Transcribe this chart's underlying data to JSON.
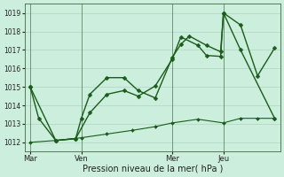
{
  "xlabel": "Pression niveau de la mer( hPa )",
  "bg_color": "#cceedd",
  "grid_color": "#aaccbb",
  "line_color": "#1a5c1a",
  "ylim": [
    1011.5,
    1019.5
  ],
  "yticks": [
    1012,
    1013,
    1014,
    1015,
    1016,
    1017,
    1018,
    1019
  ],
  "xtick_labels": [
    "Mar",
    "Ven",
    "Mer",
    "Jeu"
  ],
  "xtick_positions": [
    0,
    18,
    50,
    68
  ],
  "vline_positions": [
    0,
    18,
    50,
    68
  ],
  "xlim": [
    -2,
    88
  ],
  "series": [
    {
      "x": [
        0,
        3,
        9,
        16,
        18,
        21,
        27,
        33,
        38,
        44,
        50,
        53,
        56,
        62,
        67,
        68,
        74,
        80,
        86
      ],
      "y": [
        1015.0,
        1013.3,
        1012.1,
        1012.2,
        1013.3,
        1014.6,
        1015.5,
        1015.5,
        1014.8,
        1014.4,
        1016.6,
        1017.3,
        1017.75,
        1017.25,
        1016.9,
        1019.0,
        1018.35,
        1015.6,
        1017.1
      ],
      "marker": "D",
      "markersize": 2.5,
      "linewidth": 1.0
    },
    {
      "x": [
        0,
        9,
        16,
        21,
        27,
        33,
        38,
        44,
        50,
        53,
        59,
        62,
        67,
        68,
        74,
        86
      ],
      "y": [
        1015.0,
        1012.1,
        1012.2,
        1013.6,
        1014.6,
        1014.8,
        1014.5,
        1015.05,
        1016.5,
        1017.7,
        1017.25,
        1016.7,
        1016.65,
        1019.0,
        1017.0,
        1013.3
      ],
      "marker": "D",
      "markersize": 2.5,
      "linewidth": 1.0
    },
    {
      "x": [
        0,
        9,
        18,
        27,
        36,
        44,
        50,
        59,
        68,
        74,
        80,
        86
      ],
      "y": [
        1012.0,
        1012.1,
        1012.25,
        1012.45,
        1012.65,
        1012.85,
        1013.05,
        1013.25,
        1013.05,
        1013.3,
        1013.3,
        1013.3
      ],
      "marker": "D",
      "markersize": 2.0,
      "linewidth": 0.8,
      "linestyle": "-"
    }
  ]
}
